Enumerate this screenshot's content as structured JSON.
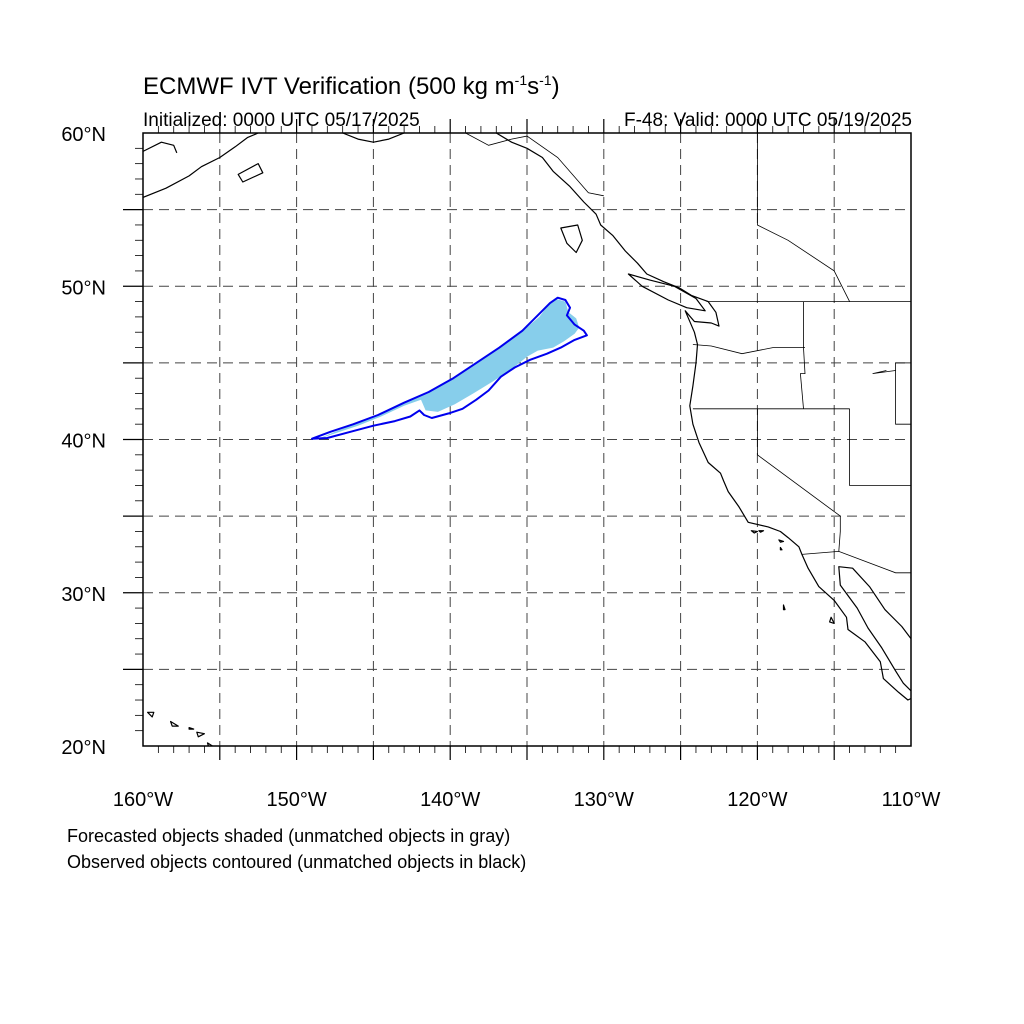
{
  "title": {
    "text": "ECMWF IVT Verification (500 kg m",
    "unit_exp1": "-1",
    "unit_s": "s",
    "unit_exp2": "-1",
    "close": ")"
  },
  "subtitle_left": "Initialized: 0000 UTC 05/17/2025",
  "subtitle_right": "F-48: Valid: 0000 UTC 05/19/2025",
  "notes": {
    "forecast": "Forecasted objects shaded (unmatched objects in gray)",
    "observed": "Observed objects contoured (unmatched objects in black)"
  },
  "map": {
    "extent": {
      "lon_min": -160,
      "lon_max": -110,
      "lat_min": 20,
      "lat_max": 60
    },
    "lon_labels": [
      {
        "lon": -160,
        "text": "160°W"
      },
      {
        "lon": -150,
        "text": "150°W"
      },
      {
        "lon": -140,
        "text": "140°W"
      },
      {
        "lon": -130,
        "text": "130°W"
      },
      {
        "lon": -120,
        "text": "120°W"
      },
      {
        "lon": -110,
        "text": "110°W"
      }
    ],
    "lat_labels": [
      {
        "lat": 60,
        "text": "60°N"
      },
      {
        "lat": 50,
        "text": "50°N"
      },
      {
        "lat": 40,
        "text": "40°N"
      },
      {
        "lat": 30,
        "text": "30°N"
      },
      {
        "lat": 20,
        "text": "20°N"
      }
    ],
    "grid_lon": [
      -155,
      -150,
      -145,
      -140,
      -135,
      -130,
      -125,
      -120,
      -115
    ],
    "grid_lat": [
      25,
      30,
      35,
      40,
      45,
      50,
      55
    ],
    "colors": {
      "forecast_fill": "#87ceeb",
      "observed_contour": "#0000ee",
      "coastline": "#000000",
      "grid": "#444444"
    },
    "forecast_object": [
      [
        -148.7,
        40.0
      ],
      [
        -147.5,
        40.5
      ],
      [
        -146.2,
        41.0
      ],
      [
        -144.8,
        41.6
      ],
      [
        -143.0,
        42.4
      ],
      [
        -141.5,
        43.0
      ],
      [
        -140.0,
        43.9
      ],
      [
        -138.5,
        44.9
      ],
      [
        -137.0,
        45.8
      ],
      [
        -135.5,
        46.9
      ],
      [
        -134.2,
        48.0
      ],
      [
        -133.6,
        48.8
      ],
      [
        -133.2,
        49.2
      ],
      [
        -132.5,
        49.0
      ],
      [
        -132.3,
        48.3
      ],
      [
        -131.8,
        47.9
      ],
      [
        -131.6,
        47.3
      ],
      [
        -131.9,
        46.9
      ],
      [
        -132.6,
        46.4
      ],
      [
        -133.3,
        46.0
      ],
      [
        -134.3,
        45.8
      ],
      [
        -135.0,
        45.4
      ],
      [
        -136.0,
        44.6
      ],
      [
        -137.2,
        43.8
      ],
      [
        -138.5,
        43.0
      ],
      [
        -139.7,
        42.3
      ],
      [
        -140.8,
        41.8
      ],
      [
        -141.6,
        41.9
      ],
      [
        -141.9,
        42.6
      ],
      [
        -143.0,
        42.2
      ],
      [
        -144.5,
        41.5
      ],
      [
        -146.0,
        40.9
      ],
      [
        -147.5,
        40.4
      ],
      [
        -148.7,
        40.0
      ]
    ],
    "observed_object": [
      [
        -149.0,
        40.05
      ],
      [
        -147.8,
        40.5
      ],
      [
        -146.3,
        41.0
      ],
      [
        -144.7,
        41.6
      ],
      [
        -143.0,
        42.4
      ],
      [
        -141.4,
        43.1
      ],
      [
        -139.8,
        44.0
      ],
      [
        -138.3,
        45.0
      ],
      [
        -136.8,
        46.0
      ],
      [
        -135.3,
        47.1
      ],
      [
        -134.2,
        48.2
      ],
      [
        -133.5,
        48.9
      ],
      [
        -133.0,
        49.25
      ],
      [
        -132.5,
        49.1
      ],
      [
        -132.2,
        48.6
      ],
      [
        -132.4,
        48.1
      ],
      [
        -131.9,
        47.5
      ],
      [
        -131.3,
        47.1
      ],
      [
        -131.1,
        46.8
      ],
      [
        -131.9,
        46.5
      ],
      [
        -132.8,
        46.0
      ],
      [
        -133.7,
        45.6
      ],
      [
        -134.8,
        45.2
      ],
      [
        -135.8,
        44.7
      ],
      [
        -136.7,
        44.1
      ],
      [
        -137.5,
        43.2
      ],
      [
        -138.3,
        42.6
      ],
      [
        -139.2,
        42.0
      ],
      [
        -140.1,
        41.7
      ],
      [
        -141.2,
        41.4
      ],
      [
        -141.7,
        41.6
      ],
      [
        -142.0,
        41.9
      ],
      [
        -142.6,
        41.5
      ],
      [
        -143.6,
        41.2
      ],
      [
        -145.0,
        40.9
      ],
      [
        -146.5,
        40.5
      ],
      [
        -148.0,
        40.1
      ],
      [
        -149.0,
        40.05
      ]
    ],
    "coast_mainland": [
      [
        -137.0,
        60.0
      ],
      [
        -136.0,
        59.4
      ],
      [
        -135.0,
        59.0
      ],
      [
        -134.0,
        58.4
      ],
      [
        -133.3,
        57.5
      ],
      [
        -132.2,
        56.5
      ],
      [
        -131.3,
        55.5
      ],
      [
        -130.5,
        54.7
      ],
      [
        -130.2,
        54.0
      ],
      [
        -129.4,
        53.3
      ],
      [
        -128.6,
        52.3
      ],
      [
        -127.8,
        51.5
      ],
      [
        -127.2,
        50.8
      ],
      [
        -126.1,
        50.3
      ],
      [
        -125.1,
        49.9
      ],
      [
        -124.3,
        49.4
      ],
      [
        -123.2,
        49.0
      ],
      [
        -122.7,
        48.3
      ],
      [
        -122.5,
        47.4
      ],
      [
        -123.0,
        47.6
      ],
      [
        -124.1,
        47.7
      ],
      [
        -124.7,
        48.4
      ],
      [
        -124.1,
        47.0
      ],
      [
        -123.9,
        46.2
      ],
      [
        -124.0,
        45.0
      ],
      [
        -124.2,
        43.5
      ],
      [
        -124.4,
        42.2
      ],
      [
        -124.2,
        41.0
      ],
      [
        -123.8,
        39.8
      ],
      [
        -123.2,
        38.5
      ],
      [
        -122.4,
        37.8
      ],
      [
        -122.2,
        37.3
      ],
      [
        -121.9,
        36.6
      ],
      [
        -121.2,
        35.6
      ],
      [
        -120.6,
        34.6
      ],
      [
        -119.3,
        34.3
      ],
      [
        -118.5,
        34.0
      ],
      [
        -118.0,
        33.6
      ],
      [
        -117.3,
        33.0
      ],
      [
        -117.1,
        32.5
      ],
      [
        -116.7,
        31.6
      ],
      [
        -116.0,
        30.4
      ],
      [
        -115.0,
        29.5
      ],
      [
        -114.2,
        28.4
      ],
      [
        -114.1,
        27.6
      ],
      [
        -113.0,
        26.8
      ],
      [
        -112.0,
        25.5
      ],
      [
        -111.8,
        24.4
      ],
      [
        -110.8,
        23.5
      ],
      [
        -110.2,
        23.0
      ],
      [
        -110.0,
        23.1
      ]
    ],
    "coast_gulf": [
      [
        -110.0,
        27.0
      ],
      [
        -110.6,
        27.8
      ],
      [
        -111.7,
        28.9
      ],
      [
        -112.7,
        30.4
      ],
      [
        -113.8,
        31.6
      ],
      [
        -114.7,
        31.7
      ],
      [
        -114.6,
        30.5
      ],
      [
        -113.5,
        29.0
      ],
      [
        -112.8,
        27.7
      ],
      [
        -111.9,
        26.4
      ],
      [
        -111.0,
        24.9
      ],
      [
        -110.5,
        24.1
      ],
      [
        -110.0,
        23.6
      ]
    ],
    "coast_alaska": [
      [
        -160.0,
        55.8
      ],
      [
        -158.5,
        56.4
      ],
      [
        -157.0,
        57.2
      ],
      [
        -156.2,
        57.8
      ],
      [
        -155.0,
        58.4
      ],
      [
        -154.0,
        59.1
      ],
      [
        -153.2,
        59.7
      ],
      [
        -152.5,
        60.0
      ]
    ],
    "coast_alaska2": [
      [
        -160.0,
        58.8
      ],
      [
        -158.8,
        59.4
      ],
      [
        -158.0,
        59.2
      ],
      [
        -157.8,
        58.7
      ]
    ],
    "coast_southeast_ak": [
      [
        -147.0,
        60.0
      ],
      [
        -146.0,
        59.6
      ],
      [
        -145.0,
        59.4
      ],
      [
        -144.0,
        59.6
      ],
      [
        -143.0,
        60.0
      ]
    ],
    "islands": [
      [
        [
          -152.5,
          58.0
        ],
        [
          -153.8,
          57.3
        ],
        [
          -153.5,
          56.8
        ],
        [
          -152.2,
          57.4
        ],
        [
          -152.5,
          58.0
        ]
      ],
      [
        [
          -132.8,
          53.8
        ],
        [
          -131.7,
          54.0
        ],
        [
          -131.4,
          53.0
        ],
        [
          -131.8,
          52.2
        ],
        [
          -132.4,
          52.8
        ],
        [
          -132.8,
          53.8
        ]
      ],
      [
        [
          -128.4,
          50.8
        ],
        [
          -127.0,
          50.4
        ],
        [
          -125.4,
          50.0
        ],
        [
          -124.0,
          49.2
        ],
        [
          -123.4,
          48.4
        ],
        [
          -124.6,
          48.6
        ],
        [
          -125.8,
          49.1
        ],
        [
          -127.5,
          50.0
        ],
        [
          -128.4,
          50.8
        ]
      ],
      [
        [
          -119.6,
          34.05
        ],
        [
          -119.9,
          34.05
        ],
        [
          -119.8,
          33.95
        ],
        [
          -119.6,
          34.05
        ]
      ],
      [
        [
          -120.4,
          34.05
        ],
        [
          -120.0,
          34.0
        ],
        [
          -120.2,
          33.9
        ],
        [
          -120.4,
          34.05
        ]
      ],
      [
        [
          -118.6,
          33.45
        ],
        [
          -118.3,
          33.35
        ],
        [
          -118.5,
          33.3
        ],
        [
          -118.6,
          33.45
        ]
      ],
      [
        [
          -118.5,
          32.95
        ],
        [
          -118.4,
          32.8
        ],
        [
          -118.5,
          32.8
        ],
        [
          -118.5,
          32.95
        ]
      ],
      [
        [
          -118.3,
          29.2
        ],
        [
          -118.2,
          28.9
        ],
        [
          -118.3,
          28.9
        ],
        [
          -118.3,
          29.2
        ]
      ],
      [
        [
          -115.2,
          28.4
        ],
        [
          -115.0,
          28.0
        ],
        [
          -115.3,
          28.1
        ],
        [
          -115.2,
          28.4
        ]
      ],
      [
        [
          -159.7,
          22.2
        ],
        [
          -159.3,
          22.2
        ],
        [
          -159.4,
          21.9
        ],
        [
          -159.7,
          22.2
        ]
      ],
      [
        [
          -158.2,
          21.6
        ],
        [
          -157.7,
          21.3
        ],
        [
          -158.1,
          21.3
        ],
        [
          -158.2,
          21.6
        ]
      ],
      [
        [
          -157.0,
          21.2
        ],
        [
          -156.7,
          21.1
        ],
        [
          -157.0,
          21.1
        ],
        [
          -157.0,
          21.2
        ]
      ],
      [
        [
          -156.5,
          20.9
        ],
        [
          -156.0,
          20.8
        ],
        [
          -156.4,
          20.6
        ],
        [
          -156.5,
          20.9
        ]
      ],
      [
        [
          -155.8,
          20.2
        ],
        [
          -155.0,
          19.7
        ],
        [
          -155.6,
          19.5
        ],
        [
          -155.8,
          20.2
        ]
      ]
    ],
    "borders": [
      [
        [
          -123.3,
          49.0
        ],
        [
          -110.0,
          49.0
        ]
      ],
      [
        [
          -117.0,
          49.0
        ],
        [
          -117.0,
          46.0
        ],
        [
          -116.9,
          44.3
        ],
        [
          -117.2,
          44.3
        ],
        [
          -117.0,
          42.0
        ]
      ],
      [
        [
          -124.2,
          46.2
        ],
        [
          -123.0,
          46.1
        ],
        [
          -121.0,
          45.6
        ],
        [
          -119.0,
          46.0
        ],
        [
          -116.9,
          46.0
        ]
      ],
      [
        [
          -124.2,
          42.0
        ],
        [
          -114.0,
          42.0
        ]
      ],
      [
        [
          -120.0,
          42.0
        ],
        [
          -120.0,
          39.0
        ],
        [
          -114.6,
          35.0
        ],
        [
          -114.6,
          34.0
        ],
        [
          -114.7,
          32.7
        ]
      ],
      [
        [
          -117.1,
          32.5
        ],
        [
          -114.7,
          32.7
        ],
        [
          -111.0,
          31.3
        ],
        [
          -110.0,
          31.3
        ]
      ],
      [
        [
          -114.0,
          42.0
        ],
        [
          -114.0,
          37.0
        ],
        [
          -110.0,
          37.0
        ]
      ],
      [
        [
          -111.0,
          45.0
        ],
        [
          -110.0,
          45.0
        ]
      ],
      [
        [
          -111.0,
          45.0
        ],
        [
          -111.0,
          41.0
        ],
        [
          -110.0,
          41.0
        ]
      ],
      [
        [
          -120.0,
          60.0
        ],
        [
          -120.0,
          54.0
        ],
        [
          -118.0,
          53.0
        ],
        [
          -115.0,
          51.0
        ],
        [
          -114.0,
          49.0
        ]
      ],
      [
        [
          -139.0,
          60.0
        ],
        [
          -137.5,
          59.2
        ],
        [
          -136.0,
          59.6
        ],
        [
          -135.0,
          59.8
        ],
        [
          -133.0,
          58.4
        ],
        [
          -131.0,
          56.1
        ],
        [
          -130.0,
          55.9
        ]
      ],
      [
        [
          -111.6,
          44.5
        ],
        [
          -112.5,
          44.3
        ],
        [
          -111.0,
          44.5
        ]
      ]
    ]
  }
}
